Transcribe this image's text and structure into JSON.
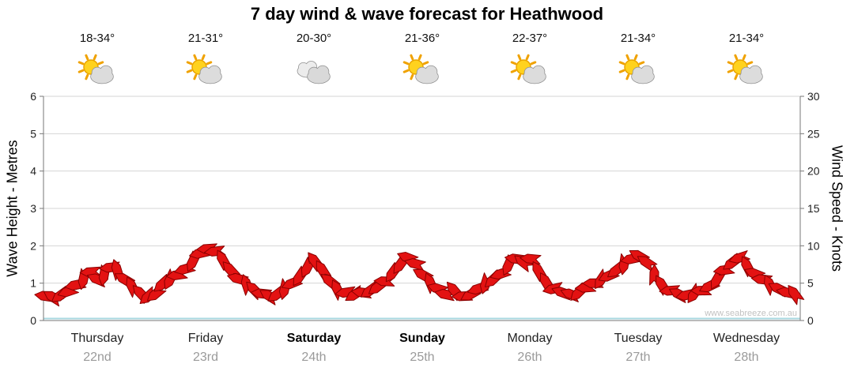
{
  "title": "7 day wind & wave forecast for Heathwood",
  "watermark": "www.seabreeze.com.au",
  "axes": {
    "left_label": "Wave Height - Metres",
    "right_label": "Wind Speed - Knots",
    "left_ticks": [
      0,
      1,
      2,
      3,
      4,
      5,
      6
    ],
    "right_ticks": [
      0,
      5,
      10,
      15,
      20,
      25,
      30
    ]
  },
  "days": [
    {
      "name": "Thursday",
      "date": "22nd",
      "temp": "18-34°",
      "icon": "sun-cloud",
      "weekend": false
    },
    {
      "name": "Friday",
      "date": "23rd",
      "temp": "21-31°",
      "icon": "sun-cloud",
      "weekend": false
    },
    {
      "name": "Saturday",
      "date": "24th",
      "temp": "20-30°",
      "icon": "cloud",
      "weekend": true
    },
    {
      "name": "Sunday",
      "date": "25th",
      "temp": "21-36°",
      "icon": "sun-cloud",
      "weekend": true
    },
    {
      "name": "Monday",
      "date": "26th",
      "temp": "22-37°",
      "icon": "sun-cloud",
      "weekend": false
    },
    {
      "name": "Tuesday",
      "date": "27th",
      "temp": "21-34°",
      "icon": "sun-cloud",
      "weekend": false
    },
    {
      "name": "Wednesday",
      "date": "28th",
      "temp": "21-34°",
      "icon": "sun-cloud",
      "weekend": false
    }
  ],
  "chart_data": {
    "type": "line",
    "subtype": "wind-barb-band",
    "title": "7 day wind & wave forecast for Heathwood",
    "ylabel_left": "Wave Height - Metres",
    "ylabel_right": "Wind Speed - Knots",
    "ylim_left": [
      0,
      6
    ],
    "ylim_right": [
      0,
      30
    ],
    "right_axis_scale": "knots = metres x 5 (same band reads on both axes)",
    "x_unit": "days from start (Thursday 22nd = 0)",
    "barb_color": "#e31212",
    "barb_outline": "#8a0000",
    "baseline_color": "#a8d8e0",
    "grid": true,
    "points": [
      [
        0.02,
        0.65
      ],
      [
        0.09,
        0.62
      ],
      [
        0.16,
        0.68
      ],
      [
        0.23,
        0.78
      ],
      [
        0.3,
        0.95
      ],
      [
        0.37,
        1.12
      ],
      [
        0.44,
        1.3
      ],
      [
        0.5,
        1.1
      ],
      [
        0.56,
        1.22
      ],
      [
        0.62,
        1.42
      ],
      [
        0.68,
        1.35
      ],
      [
        0.75,
        1.1
      ],
      [
        0.82,
        0.9
      ],
      [
        0.9,
        0.72
      ],
      [
        0.97,
        0.65
      ],
      [
        1.04,
        0.72
      ],
      [
        1.1,
        0.98
      ],
      [
        1.17,
        1.1
      ],
      [
        1.24,
        1.22
      ],
      [
        1.31,
        1.38
      ],
      [
        1.38,
        1.58
      ],
      [
        1.45,
        1.8
      ],
      [
        1.52,
        1.92
      ],
      [
        1.59,
        1.85
      ],
      [
        1.66,
        1.62
      ],
      [
        1.73,
        1.35
      ],
      [
        1.8,
        1.12
      ],
      [
        1.88,
        0.95
      ],
      [
        1.95,
        0.82
      ],
      [
        2.02,
        0.72
      ],
      [
        2.09,
        0.65
      ],
      [
        2.16,
        0.7
      ],
      [
        2.23,
        0.85
      ],
      [
        2.3,
        1.0
      ],
      [
        2.37,
        1.18
      ],
      [
        2.44,
        1.42
      ],
      [
        2.51,
        1.58
      ],
      [
        2.58,
        1.35
      ],
      [
        2.65,
        1.05
      ],
      [
        2.72,
        0.82
      ],
      [
        2.8,
        0.75
      ],
      [
        2.88,
        0.7
      ],
      [
        2.95,
        0.75
      ],
      [
        3.02,
        0.8
      ],
      [
        3.09,
        0.9
      ],
      [
        3.16,
        1.05
      ],
      [
        3.23,
        1.28
      ],
      [
        3.3,
        1.5
      ],
      [
        3.37,
        1.68
      ],
      [
        3.44,
        1.52
      ],
      [
        3.51,
        1.22
      ],
      [
        3.58,
        1.0
      ],
      [
        3.65,
        0.85
      ],
      [
        3.72,
        0.7
      ],
      [
        3.8,
        0.8
      ],
      [
        3.88,
        0.65
      ],
      [
        3.95,
        0.7
      ],
      [
        4.02,
        0.85
      ],
      [
        4.09,
        1.0
      ],
      [
        4.16,
        1.1
      ],
      [
        4.23,
        1.25
      ],
      [
        4.3,
        1.48
      ],
      [
        4.37,
        1.65
      ],
      [
        4.44,
        1.55
      ],
      [
        4.51,
        1.65
      ],
      [
        4.58,
        1.32
      ],
      [
        4.65,
        1.02
      ],
      [
        4.72,
        0.85
      ],
      [
        4.8,
        0.75
      ],
      [
        4.88,
        0.7
      ],
      [
        4.95,
        0.75
      ],
      [
        5.02,
        0.88
      ],
      [
        5.09,
        1.0
      ],
      [
        5.16,
        1.1
      ],
      [
        5.23,
        1.2
      ],
      [
        5.3,
        1.35
      ],
      [
        5.37,
        1.52
      ],
      [
        5.44,
        1.65
      ],
      [
        5.51,
        1.72
      ],
      [
        5.58,
        1.55
      ],
      [
        5.65,
        1.2
      ],
      [
        5.72,
        0.95
      ],
      [
        5.8,
        0.8
      ],
      [
        5.88,
        0.7
      ],
      [
        5.95,
        0.68
      ],
      [
        6.02,
        0.72
      ],
      [
        6.09,
        0.8
      ],
      [
        6.16,
        0.92
      ],
      [
        6.23,
        1.1
      ],
      [
        6.3,
        1.35
      ],
      [
        6.37,
        1.55
      ],
      [
        6.44,
        1.68
      ],
      [
        6.51,
        1.45
      ],
      [
        6.58,
        1.25
      ],
      [
        6.65,
        1.1
      ],
      [
        6.72,
        0.95
      ],
      [
        6.8,
        0.85
      ],
      [
        6.88,
        0.75
      ],
      [
        6.95,
        0.7
      ]
    ]
  }
}
